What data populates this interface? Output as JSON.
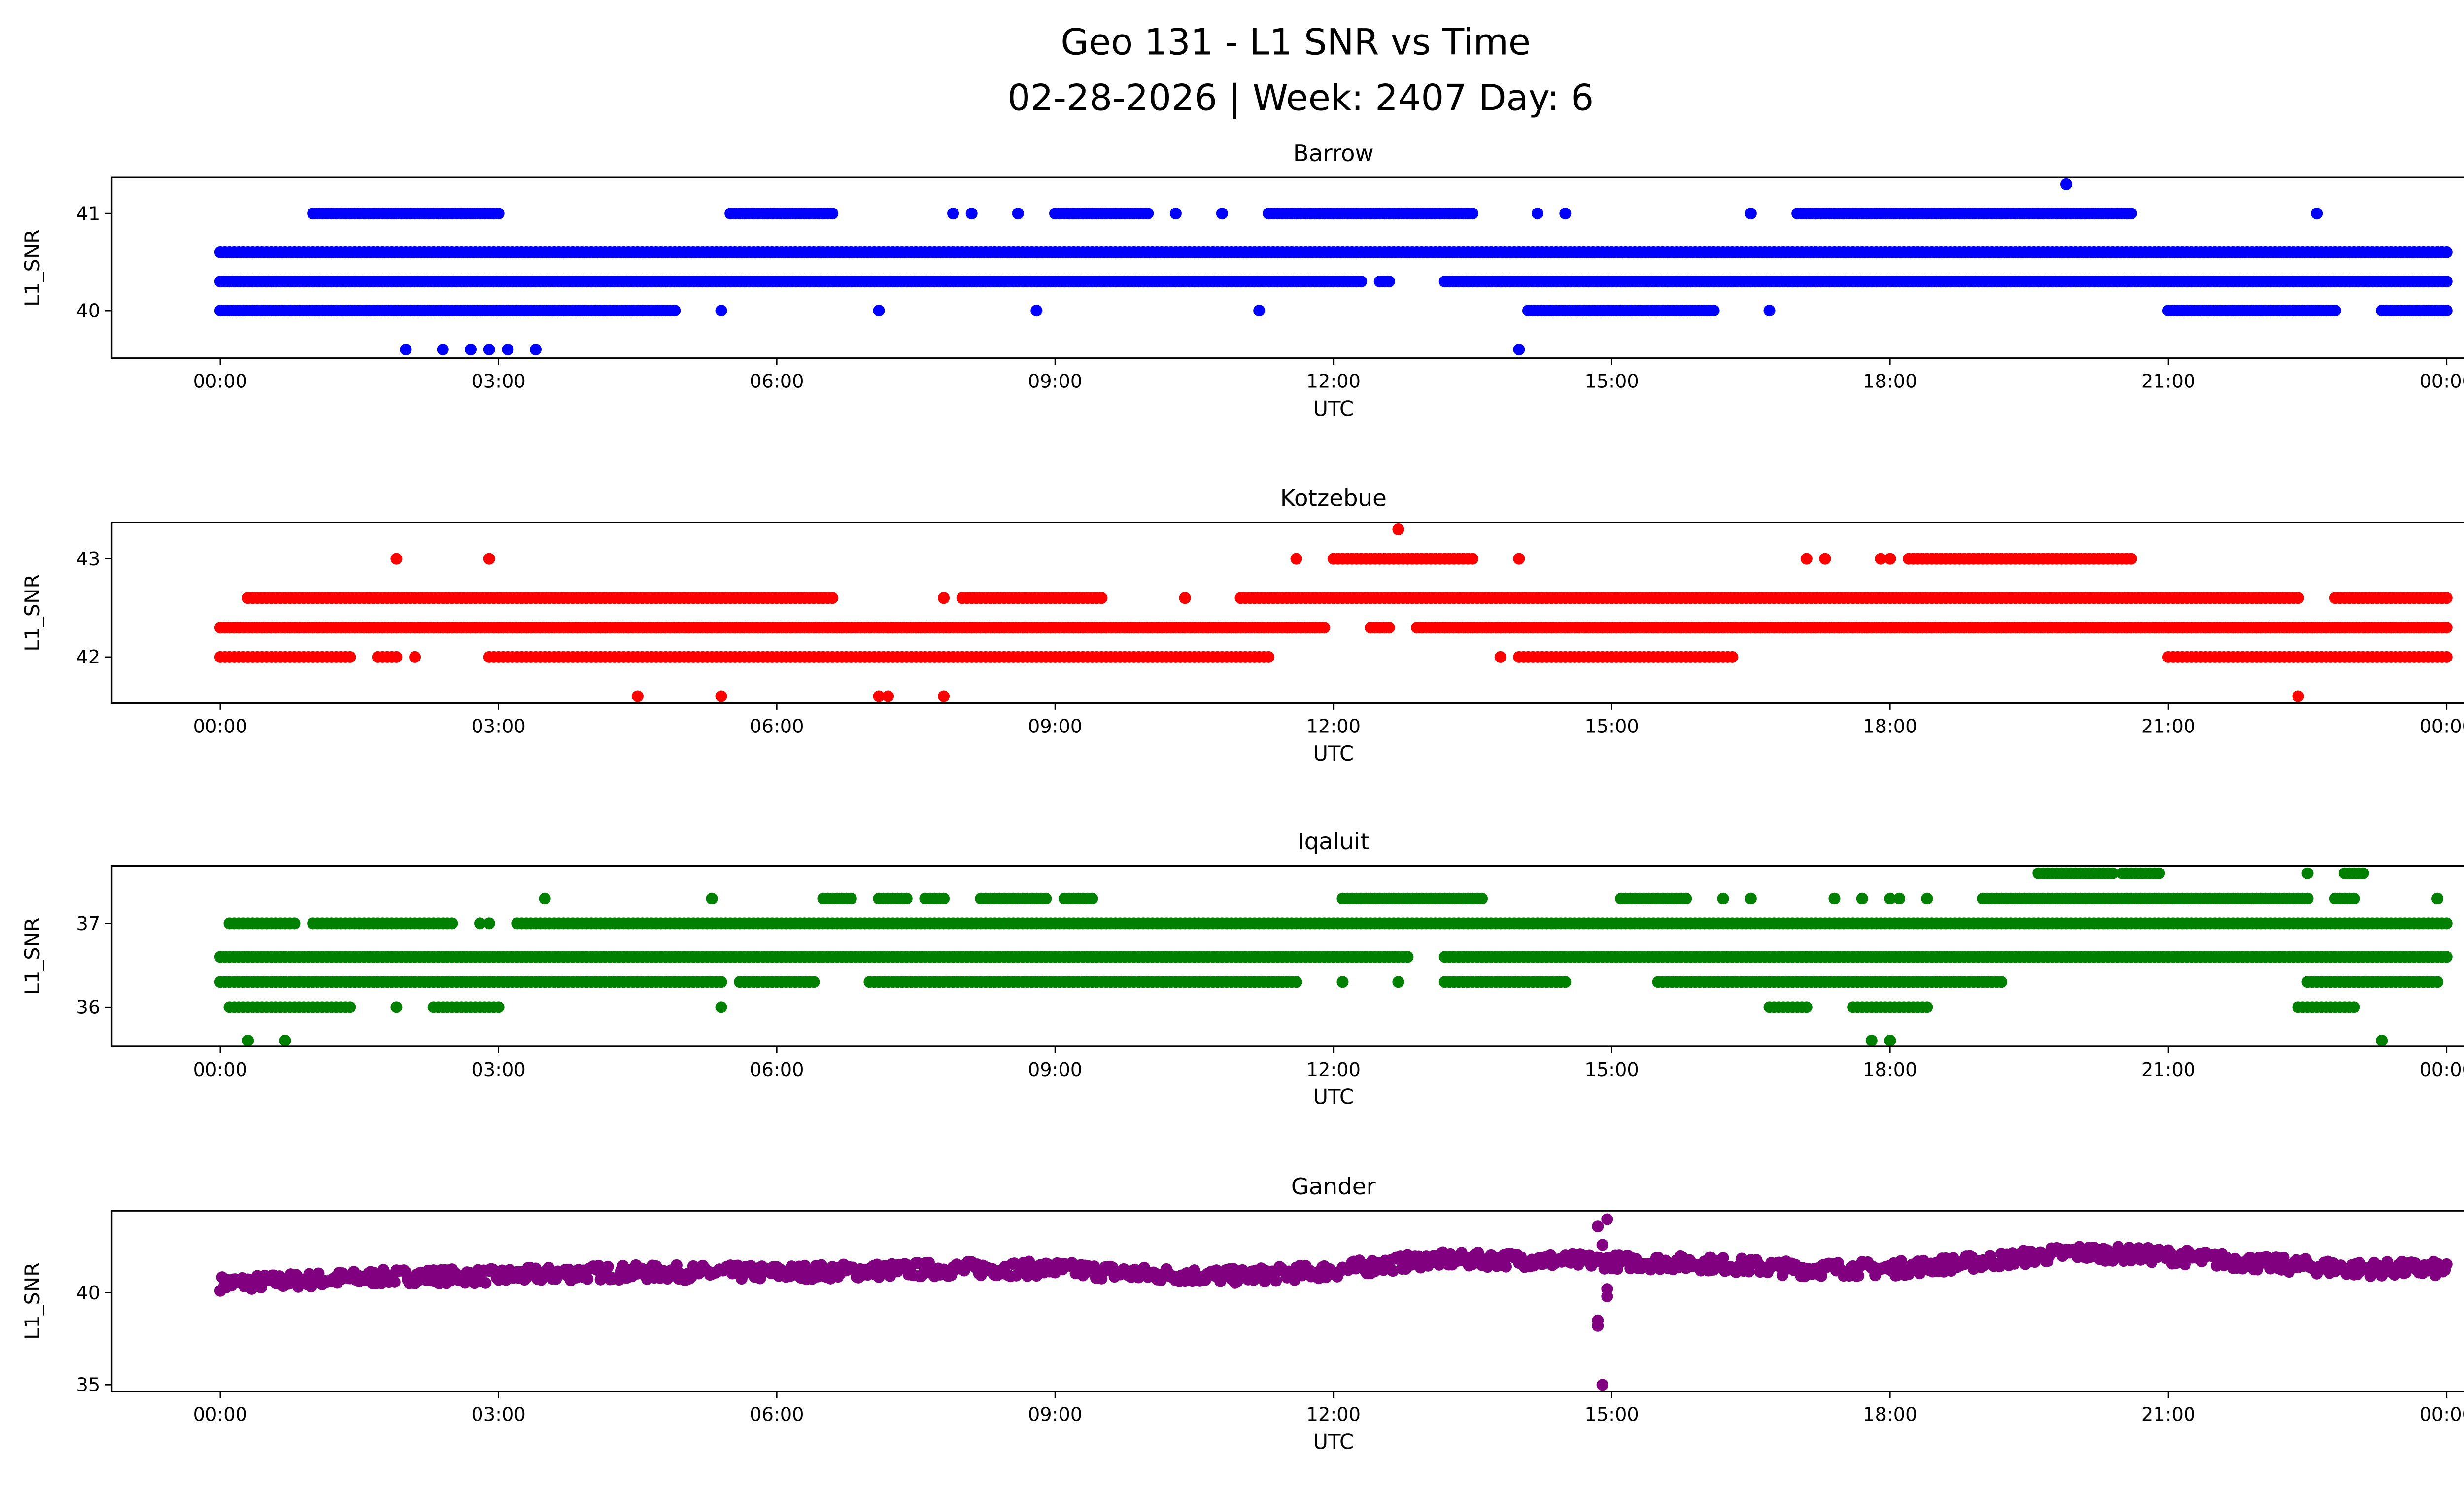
{
  "figure": {
    "title_line1": "Geo 131 - L1 SNR vs Time",
    "title_line2": "02-28-2026 | Week: 2407 Day: 6"
  },
  "chart_data": [
    {
      "type": "scatter",
      "title": "Barrow",
      "xlabel": "UTC",
      "ylabel": "L1_SNR",
      "color": "#0000ff",
      "xlim_hours": [
        -1.17,
        25.17
      ],
      "ylim": [
        39.51,
        41.37
      ],
      "yticks": [
        40,
        41
      ],
      "xtick_labels": [
        "00:00",
        "03:00",
        "06:00",
        "09:00",
        "12:00",
        "15:00",
        "18:00",
        "21:00",
        "00:00"
      ],
      "runs": [
        {
          "y": 40.6,
          "ranges": [
            [
              0,
              24
            ]
          ]
        },
        {
          "y": 40.3,
          "ranges": [
            [
              0,
              12.3
            ],
            [
              12.5,
              12.6
            ],
            [
              13.2,
              24
            ]
          ]
        },
        {
          "y": 40.0,
          "ranges": [
            [
              0,
              4.9
            ],
            [
              14.1,
              16.1
            ],
            [
              21.0,
              22.8
            ],
            [
              23.3,
              24
            ]
          ]
        },
        {
          "y": 41.0,
          "ranges": [
            [
              1.0,
              3.0
            ],
            [
              5.5,
              6.6
            ],
            [
              9.0,
              10.0
            ],
            [
              11.3,
              13.5
            ],
            [
              17.0,
              20.6
            ]
          ]
        }
      ],
      "points": [
        [
          5.4,
          40.0
        ],
        [
          7.1,
          40.0
        ],
        [
          8.8,
          40.0
        ],
        [
          11.2,
          40.0
        ],
        [
          16.7,
          40.0
        ],
        [
          7.9,
          41.0
        ],
        [
          8.1,
          41.0
        ],
        [
          8.6,
          41.0
        ],
        [
          10.3,
          41.0
        ],
        [
          10.8,
          41.0
        ],
        [
          14.2,
          41.0
        ],
        [
          14.5,
          41.0
        ],
        [
          16.5,
          41.0
        ],
        [
          22.6,
          41.0
        ],
        [
          2.0,
          39.6
        ],
        [
          2.4,
          39.6
        ],
        [
          2.7,
          39.6
        ],
        [
          2.9,
          39.6
        ],
        [
          3.1,
          39.6
        ],
        [
          3.4,
          39.6
        ],
        [
          14.0,
          39.6
        ],
        [
          19.9,
          41.3
        ]
      ]
    },
    {
      "type": "scatter",
      "title": "Kotzebue",
      "xlabel": "UTC",
      "ylabel": "L1_SNR",
      "color": "#ff0000",
      "xlim_hours": [
        -1.17,
        25.17
      ],
      "ylim": [
        41.53,
        43.37
      ],
      "yticks": [
        42,
        43
      ],
      "xtick_labels": [
        "00:00",
        "03:00",
        "06:00",
        "09:00",
        "12:00",
        "15:00",
        "18:00",
        "21:00",
        "00:00"
      ],
      "runs": [
        {
          "y": 42.3,
          "ranges": [
            [
              0,
              11.9
            ],
            [
              12.4,
              12.6
            ],
            [
              12.9,
              24
            ]
          ]
        },
        {
          "y": 42.0,
          "ranges": [
            [
              0,
              1.4
            ],
            [
              1.7,
              1.9
            ],
            [
              2.9,
              11.3
            ],
            [
              14.0,
              16.3
            ],
            [
              21.0,
              24
            ]
          ]
        },
        {
          "y": 42.6,
          "ranges": [
            [
              0.3,
              6.6
            ],
            [
              8.0,
              9.5
            ],
            [
              11.0,
              22.4
            ],
            [
              22.8,
              24
            ]
          ]
        },
        {
          "y": 43.0,
          "ranges": [
            [
              12.0,
              13.5
            ],
            [
              18.2,
              20.6
            ]
          ]
        }
      ],
      "points": [
        [
          2.1,
          42.0
        ],
        [
          13.8,
          42.0
        ],
        [
          7.8,
          42.6
        ],
        [
          10.4,
          42.6
        ],
        [
          1.9,
          43.0
        ],
        [
          2.9,
          43.0
        ],
        [
          11.6,
          43.0
        ],
        [
          14.0,
          43.0
        ],
        [
          17.1,
          43.0
        ],
        [
          17.3,
          43.0
        ],
        [
          17.9,
          43.0
        ],
        [
          18.0,
          43.0
        ],
        [
          12.7,
          43.3
        ],
        [
          4.5,
          41.6
        ],
        [
          5.4,
          41.6
        ],
        [
          7.1,
          41.6
        ],
        [
          7.2,
          41.6
        ],
        [
          7.8,
          41.6
        ],
        [
          22.4,
          41.6
        ]
      ]
    },
    {
      "type": "scatter",
      "title": "Iqaluit",
      "xlabel": "UTC",
      "ylabel": "L1_SNR",
      "color": "#008000",
      "xlim_hours": [
        -1.17,
        25.17
      ],
      "ylim": [
        35.53,
        37.69
      ],
      "yticks": [
        36,
        37
      ],
      "xtick_labels": [
        "00:00",
        "03:00",
        "06:00",
        "09:00",
        "12:00",
        "15:00",
        "18:00",
        "21:00",
        "00:00"
      ],
      "runs": [
        {
          "y": 36.6,
          "ranges": [
            [
              0,
              12.8
            ],
            [
              13.2,
              24
            ]
          ]
        },
        {
          "y": 36.3,
          "ranges": [
            [
              0,
              5.4
            ],
            [
              5.6,
              6.4
            ],
            [
              7.0,
              11.6
            ],
            [
              13.2,
              14.5
            ],
            [
              15.5,
              19.2
            ],
            [
              22.5,
              23.9
            ]
          ]
        },
        {
          "y": 36.0,
          "ranges": [
            [
              0.1,
              1.4
            ],
            [
              2.3,
              3.0
            ],
            [
              16.7,
              17.1
            ],
            [
              17.6,
              18.4
            ],
            [
              22.4,
              23.0
            ]
          ]
        },
        {
          "y": 37.0,
          "ranges": [
            [
              0.1,
              0.8
            ],
            [
              1.0,
              2.5
            ],
            [
              3.2,
              24
            ]
          ]
        },
        {
          "y": 37.3,
          "ranges": [
            [
              6.5,
              6.8
            ],
            [
              7.1,
              7.4
            ],
            [
              7.6,
              7.8
            ],
            [
              8.2,
              8.9
            ],
            [
              9.1,
              9.4
            ],
            [
              12.1,
              13.6
            ],
            [
              15.1,
              15.8
            ],
            [
              19.0,
              22.5
            ],
            [
              22.8,
              23.0
            ]
          ]
        },
        {
          "y": 37.6,
          "ranges": [
            [
              19.6,
              20.4
            ],
            [
              20.5,
              20.9
            ],
            [
              22.9,
              23.1
            ]
          ]
        }
      ],
      "points": [
        [
          12.1,
          36.3
        ],
        [
          12.7,
          36.3
        ],
        [
          1.9,
          36.0
        ],
        [
          5.4,
          36.0
        ],
        [
          2.8,
          37.0
        ],
        [
          2.9,
          37.0
        ],
        [
          3.5,
          37.3
        ],
        [
          5.3,
          37.3
        ],
        [
          16.2,
          37.3
        ],
        [
          16.5,
          37.3
        ],
        [
          17.4,
          37.3
        ],
        [
          17.7,
          37.3
        ],
        [
          18.0,
          37.3
        ],
        [
          18.1,
          37.3
        ],
        [
          18.4,
          37.3
        ],
        [
          23.9,
          37.3
        ],
        [
          22.5,
          37.6
        ],
        [
          0.3,
          35.6
        ],
        [
          0.7,
          35.6
        ],
        [
          17.8,
          35.6
        ],
        [
          18.0,
          35.6
        ],
        [
          23.3,
          35.6
        ]
      ]
    },
    {
      "type": "scatter",
      "title": "Gander",
      "xlabel": "UTC",
      "ylabel": "L1_SNR",
      "color": "#800080",
      "xlim_hours": [
        -1.17,
        25.17
      ],
      "ylim": [
        34.64,
        44.46
      ],
      "yticks": [
        35,
        40
      ],
      "xtick_labels": [
        "00:00",
        "03:00",
        "06:00",
        "09:00",
        "12:00",
        "15:00",
        "18:00",
        "21:00",
        "00:00"
      ],
      "trend": [
        [
          0,
          40.5
        ],
        [
          1,
          40.7
        ],
        [
          2,
          40.9
        ],
        [
          3,
          40.9
        ],
        [
          4,
          41.1
        ],
        [
          6,
          41.1
        ],
        [
          8,
          41.3
        ],
        [
          9,
          41.3
        ],
        [
          10,
          41.0
        ],
        [
          11,
          40.9
        ],
        [
          12,
          41.2
        ],
        [
          13,
          41.8
        ],
        [
          14,
          41.8
        ],
        [
          15,
          41.7
        ],
        [
          16,
          41.6
        ],
        [
          17,
          41.3
        ],
        [
          18,
          41.3
        ],
        [
          19,
          41.7
        ],
        [
          20,
          42.2
        ],
        [
          21,
          42.0
        ],
        [
          22,
          41.6
        ],
        [
          23,
          41.3
        ],
        [
          24,
          41.3
        ]
      ],
      "trend_spread": 0.4,
      "points": [
        [
          14.85,
          43.6
        ],
        [
          14.95,
          44.0
        ],
        [
          14.85,
          38.5
        ],
        [
          14.85,
          38.2
        ],
        [
          14.95,
          39.8
        ],
        [
          14.95,
          40.2
        ],
        [
          14.9,
          35.0
        ],
        [
          14.9,
          42.6
        ]
      ]
    }
  ]
}
